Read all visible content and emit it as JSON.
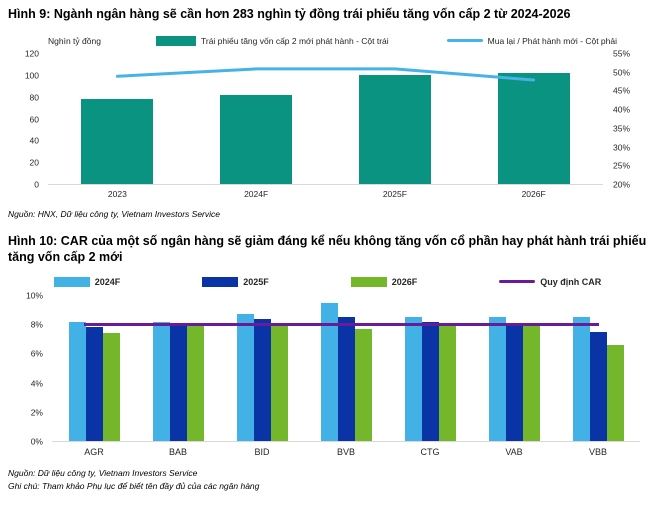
{
  "figure9": {
    "title": "Hình 9: Ngành ngân hàng sẽ cần hơn 283 nghìn tỷ đồng trái phiếu tăng vốn cấp 2 từ 2024-2026",
    "axis_unit": "Nghìn tỷ đồng",
    "source": "Nguồn: HNX, Dữ liệu công ty, Vietnam Investors Service"
  },
  "figure10": {
    "title": "Hình 10: CAR của một số ngân hàng sẽ giảm đáng kể nếu không tăng vốn cổ phần hay phát hành trái phiếu tăng vốn cấp 2 mới",
    "source": "Nguồn: Dữ liệu công ty, Vietnam Investors Service",
    "note": "Ghi chú: Tham khảo Phụ lục để biết tên đầy đủ của các ngân hàng"
  },
  "colors": {
    "teal_bar": "#0a9380",
    "sky_line": "#47b2e5",
    "bar_2024f": "#42b1e6",
    "bar_2025f": "#0a33a5",
    "bar_2026f": "#74b72a",
    "car_line": "#6a1b9a",
    "axis_line": "#d9d9d9"
  },
  "chart_data": [
    {
      "type": "bar",
      "subtype": "combo-bar-line-dual-axis",
      "title": "Hình 9: Ngành ngân hàng sẽ cần hơn 283 nghìn tỷ đồng trái phiếu tăng vốn cấp 2 từ 2024-2026",
      "categories": [
        "2023",
        "2024F",
        "2025F",
        "2026F"
      ],
      "series": [
        {
          "name": "Trái phiếu tăng vốn cấp 2 mới phát hành - Cột trái",
          "kind": "bar",
          "axis": "left",
          "color": "#0a9380",
          "values": [
            78,
            82,
            100,
            102
          ]
        },
        {
          "name": "Mua lại / Phát hành mới - Cột phải",
          "kind": "line",
          "axis": "right",
          "color": "#47b2e5",
          "values": [
            49,
            51,
            51,
            48
          ]
        }
      ],
      "left_axis": {
        "title": "Nghìn tỷ đồng",
        "min": 0,
        "max": 120,
        "ticks": [
          0,
          20,
          40,
          60,
          80,
          100,
          120
        ]
      },
      "right_axis": {
        "min": 20,
        "max": 55,
        "ticks": [
          "20%",
          "25%",
          "30%",
          "35%",
          "40%",
          "45%",
          "50%",
          "55%"
        ]
      },
      "grid": false,
      "legend_position": "top"
    },
    {
      "type": "bar",
      "subtype": "grouped-bar-with-reference-line",
      "title": "Hình 10: CAR của một số ngân hàng sẽ giảm đáng kể nếu không tăng vốn cổ phần hay phát hành trái phiếu tăng vốn cấp 2 mới",
      "categories": [
        "AGR",
        "BAB",
        "BID",
        "BVB",
        "CTG",
        "VAB",
        "VBB"
      ],
      "series": [
        {
          "name": "2024F",
          "color": "#42b1e6",
          "values": [
            8.2,
            8.2,
            8.7,
            9.5,
            8.5,
            8.5,
            8.5
          ]
        },
        {
          "name": "2025F",
          "color": "#0a33a5",
          "values": [
            7.8,
            8.0,
            8.4,
            8.5,
            8.2,
            8.0,
            7.5
          ]
        },
        {
          "name": "2026F",
          "color": "#74b72a",
          "values": [
            7.4,
            7.9,
            8.0,
            7.7,
            8.0,
            8.1,
            6.6
          ]
        }
      ],
      "reference_line": {
        "name": "Quy định CAR",
        "value": 8,
        "color": "#6a1b9a"
      },
      "y_axis": {
        "min": 0,
        "max": 10,
        "ticks": [
          "0%",
          "2%",
          "4%",
          "6%",
          "8%",
          "10%"
        ]
      },
      "grid": false,
      "legend_position": "top"
    }
  ]
}
